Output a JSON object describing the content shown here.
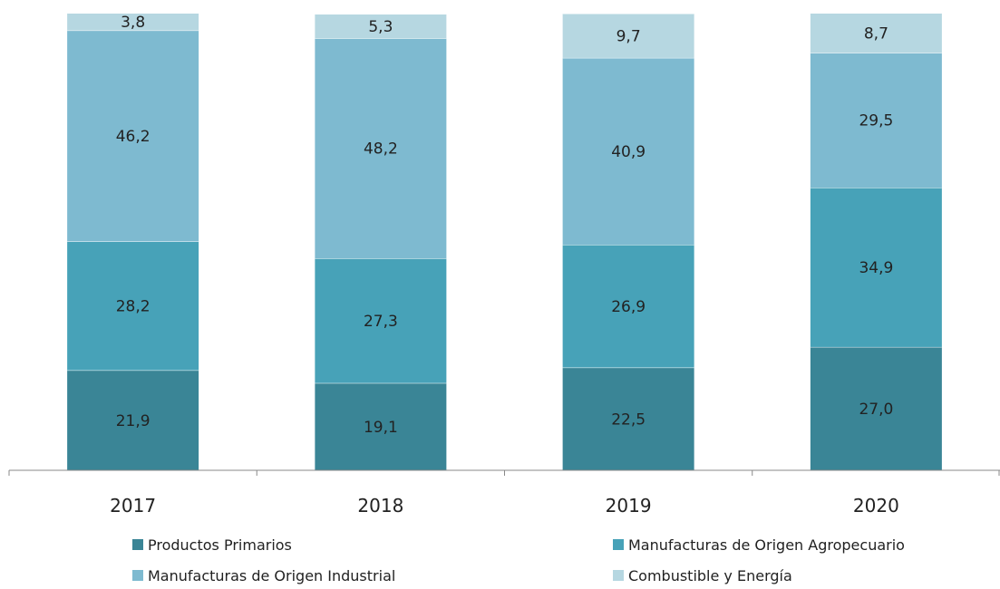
{
  "chart_data": {
    "type": "bar",
    "stacked": true,
    "categories": [
      "2017",
      "2018",
      "2019",
      "2020"
    ],
    "series": [
      {
        "name": "Productos Primarios",
        "values": [
          21.9,
          19.1,
          22.5,
          27.0
        ],
        "labels": [
          "21,9",
          "19,1",
          "22,5",
          "27,0"
        ],
        "color": "#3a8596"
      },
      {
        "name": "Manufacturas de Origen Agropecuario",
        "values": [
          28.2,
          27.3,
          26.9,
          34.9
        ],
        "labels": [
          "28,2",
          "27,3",
          "26,9",
          "34,9"
        ],
        "color": "#47a2b8"
      },
      {
        "name": "Manufacturas de Origen Industrial",
        "values": [
          46.2,
          48.2,
          40.9,
          29.5
        ],
        "labels": [
          "46,2",
          "48,2",
          "40,9",
          "29,5"
        ],
        "color": "#7ebad0"
      },
      {
        "name": "Combustible y Energía",
        "values": [
          3.8,
          5.3,
          9.7,
          8.7
        ],
        "labels": [
          "3,8",
          "5,3",
          "9,7",
          "8,7"
        ],
        "color": "#b6d7e1"
      }
    ],
    "title": "",
    "xlabel": "",
    "ylabel": "",
    "ylim": [
      0,
      100
    ],
    "grid": false,
    "legend": "bottom",
    "axis_color": "#888888"
  }
}
